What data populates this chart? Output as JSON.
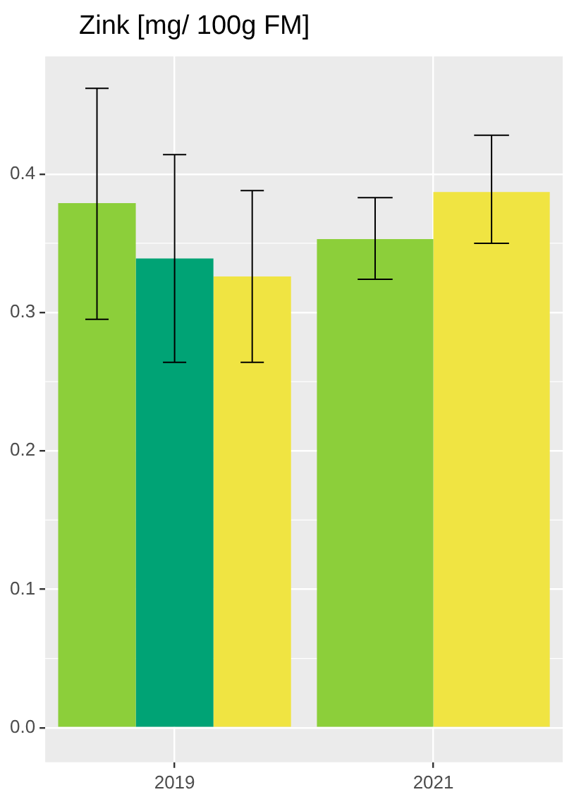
{
  "chart_data": {
    "type": "bar",
    "title": "Zink [mg/ 100g FM]",
    "categories": [
      "2019",
      "2021"
    ],
    "series": [
      {
        "color": "#8ccf3a",
        "values": [
          0.379,
          0.353
        ],
        "errors": [
          [
            0.295,
            0.462
          ],
          [
            0.324,
            0.383
          ]
        ]
      },
      {
        "color": "#00a375",
        "values": [
          0.339,
          null
        ],
        "errors": [
          [
            0.264,
            0.414
          ],
          null
        ]
      },
      {
        "color": "#f0e442",
        "values": [
          0.326,
          0.387
        ],
        "errors": [
          [
            0.264,
            0.388
          ],
          [
            0.35,
            0.428
          ]
        ]
      }
    ],
    "ylim": [
      -0.025,
      0.485
    ],
    "yticks": [
      {
        "value": 0,
        "label": "0.0"
      },
      0.1,
      0.2,
      0.3,
      0.4
    ],
    "grid": true,
    "legend": false
  }
}
